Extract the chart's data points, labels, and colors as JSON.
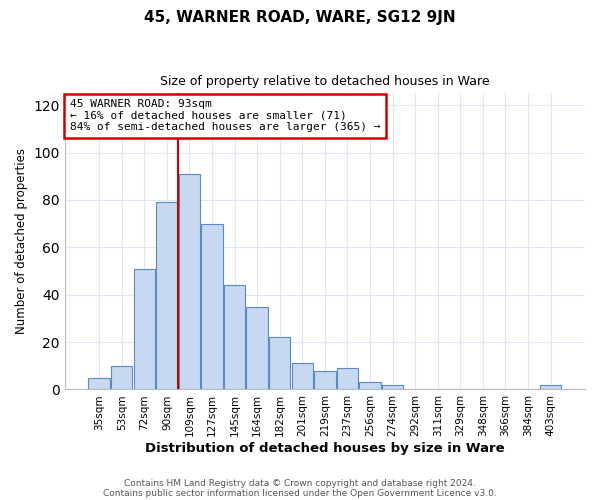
{
  "title": "45, WARNER ROAD, WARE, SG12 9JN",
  "subtitle": "Size of property relative to detached houses in Ware",
  "xlabel": "Distribution of detached houses by size in Ware",
  "ylabel": "Number of detached properties",
  "bar_labels": [
    "35sqm",
    "53sqm",
    "72sqm",
    "90sqm",
    "109sqm",
    "127sqm",
    "145sqm",
    "164sqm",
    "182sqm",
    "201sqm",
    "219sqm",
    "237sqm",
    "256sqm",
    "274sqm",
    "292sqm",
    "311sqm",
    "329sqm",
    "348sqm",
    "366sqm",
    "384sqm",
    "403sqm"
  ],
  "bar_values": [
    5,
    10,
    51,
    79,
    91,
    70,
    44,
    35,
    22,
    11,
    8,
    9,
    3,
    2,
    0,
    0,
    0,
    0,
    0,
    0,
    2
  ],
  "bar_color": "#c6d9f0",
  "bar_edge_color": "#5a8ac6",
  "vline_bar_index": 3,
  "vline_color": "#cc0000",
  "annotation_line1": "45 WARNER ROAD: 93sqm",
  "annotation_line2": "← 16% of detached houses are smaller (71)",
  "annotation_line3": "84% of semi-detached houses are larger (365) →",
  "annotation_box_facecolor": "#ffffff",
  "annotation_box_edgecolor": "#cc0000",
  "ylim": [
    0,
    125
  ],
  "yticks": [
    0,
    20,
    40,
    60,
    80,
    100,
    120
  ],
  "footer_line1": "Contains HM Land Registry data © Crown copyright and database right 2024.",
  "footer_line2": "Contains public sector information licensed under the Open Government Licence v3.0.",
  "background_color": "#ffffff",
  "grid_color": "#dce6f5",
  "title_fontsize": 11,
  "subtitle_fontsize": 9,
  "ylabel_fontsize": 8.5,
  "xlabel_fontsize": 9.5,
  "tick_fontsize": 7.5,
  "annotation_fontsize": 8,
  "footer_fontsize": 6.5
}
